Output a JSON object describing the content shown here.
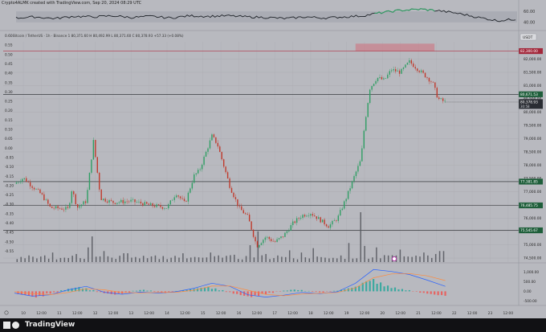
{
  "header": {
    "caption": "Crypto4ALMK created with TradingView.com, Sep 20, 2024 08:29 UTC"
  },
  "legend": {
    "symbol_line": "Bitcoin / TetherUS · 1h · Binance  1 80,371.60  H 80,492.99  L 80,371.60  C 80,378.93  +57.33 (+0.08%)"
  },
  "brand": {
    "name": "TradingView"
  },
  "colors": {
    "bg": "#b8b9bf",
    "grid": "#a9aab0",
    "up": "#2e9e63",
    "down": "#c0392b",
    "volume": "#585a61",
    "macd_line": "#2962ff",
    "signal_line": "#ff8a3c",
    "supply_zone": "#c9818c",
    "level_line": "#1e2226",
    "resistance_line": "#b03346"
  },
  "chart_data": {
    "type": "candlestick",
    "title": "",
    "instrument": "Bitcoin / TetherUS",
    "timeframe": "1h",
    "exchange": "Binance",
    "currency": "USDT",
    "ohlc": {
      "open": "80,371.60",
      "high": "80,492.99",
      "low": "80,371.60",
      "close": "80,378.93",
      "change": "+57.33 (+0.08%)"
    },
    "x_labels": [
      "10",
      "12:00",
      "11",
      "12:00",
      "12",
      "12:00",
      "13",
      "12:00",
      "14",
      "12:00",
      "15",
      "12:00",
      "16",
      "12:00",
      "17",
      "12:00",
      "18",
      "12:00",
      "19",
      "12:00",
      "20",
      "12:00",
      "21",
      "12:00",
      "22",
      "12:00",
      "23",
      "12:00"
    ],
    "x_range": [
      0,
      28
    ],
    "price_ticks": [
      "82,000.00",
      "81,500.00",
      "81,000.00",
      "80,500.00",
      "80,000.00",
      "79,500.00",
      "79,000.00",
      "78,500.00",
      "78,000.00",
      "77,500.00",
      "77,000.00",
      "76,500.00",
      "76,000.00",
      "75,500.00",
      "75,000.00",
      "74,500.00"
    ],
    "price_range": [
      74350,
      82650
    ],
    "left_ticks": [
      "0.60",
      "0.55",
      "0.50",
      "0.45",
      "0.40",
      "0.35",
      "0.30",
      "0.25",
      "0.20",
      "0.15",
      "0.10",
      "0.05",
      "0.00",
      "-0.05",
      "-0.10",
      "-0.15",
      "-0.20",
      "-0.25",
      "-0.30",
      "-0.35",
      "-0.40",
      "-0.45",
      "-0.50",
      "-0.55"
    ],
    "price_path": [
      [
        0,
        77300
      ],
      [
        0.5,
        77520
      ],
      [
        1,
        77200
      ],
      [
        1.5,
        76900
      ],
      [
        2,
        76400
      ],
      [
        3,
        76350
      ],
      [
        3.2,
        77100
      ],
      [
        3.5,
        76400
      ],
      [
        4,
        76650
      ],
      [
        4.4,
        78900
      ],
      [
        4.8,
        76750
      ],
      [
        5.5,
        76600
      ],
      [
        6.5,
        76650
      ],
      [
        7.5,
        76500
      ],
      [
        8.5,
        76400
      ],
      [
        9,
        76950
      ],
      [
        9.5,
        76550
      ],
      [
        10,
        77600
      ],
      [
        10.3,
        77800
      ],
      [
        11,
        79100
      ],
      [
        11.3,
        78800
      ],
      [
        12,
        77200
      ],
      [
        12.5,
        76400
      ],
      [
        13,
        76050
      ],
      [
        13.5,
        74950
      ],
      [
        14,
        75300
      ],
      [
        14.5,
        75100
      ],
      [
        15,
        75350
      ],
      [
        15.5,
        75800
      ],
      [
        16,
        76100
      ],
      [
        16.5,
        76200
      ],
      [
        17,
        75950
      ],
      [
        17.5,
        75700
      ],
      [
        18,
        76000
      ],
      [
        18.5,
        76800
      ],
      [
        19,
        77700
      ],
      [
        19.3,
        78200
      ],
      [
        19.5,
        79500
      ],
      [
        19.8,
        80900
      ],
      [
        20.2,
        81300
      ],
      [
        20.6,
        81200
      ],
      [
        21,
        81600
      ],
      [
        21.5,
        81500
      ],
      [
        22,
        81900
      ],
      [
        22.5,
        81600
      ],
      [
        23,
        81300
      ],
      [
        23.3,
        81100
      ],
      [
        23.6,
        80500
      ],
      [
        24,
        80380
      ]
    ],
    "volume": [
      [
        0.3,
        0.7
      ],
      [
        1.2,
        0.5
      ],
      [
        2.1,
        1.3
      ],
      [
        2.8,
        0.6
      ],
      [
        3.5,
        1.1
      ],
      [
        4.05,
        2.0
      ],
      [
        4.4,
        3.5
      ],
      [
        4.9,
        1.5
      ],
      [
        5.5,
        0.6
      ],
      [
        6.2,
        1.2
      ],
      [
        7,
        0.5
      ],
      [
        7.8,
        0.9
      ],
      [
        8.6,
        0.4
      ],
      [
        9.3,
        1.2
      ],
      [
        10.1,
        0.7
      ],
      [
        10.9,
        1.3
      ],
      [
        11.5,
        0.6
      ],
      [
        12.3,
        1.0
      ],
      [
        13.1,
        2.3
      ],
      [
        13.5,
        4.2
      ],
      [
        14.1,
        1.1
      ],
      [
        14.7,
        0.9
      ],
      [
        15.3,
        1.6
      ],
      [
        16,
        1.3
      ],
      [
        16.7,
        1.9
      ],
      [
        17.4,
        0.6
      ],
      [
        18.1,
        0.9
      ],
      [
        18.7,
        2.6
      ],
      [
        19.25,
        6.8
      ],
      [
        19.6,
        2.2
      ],
      [
        20.2,
        2.0
      ],
      [
        20.9,
        0.9
      ],
      [
        21.5,
        1.7
      ],
      [
        22.2,
        0.7
      ],
      [
        22.8,
        1.3
      ],
      [
        23.4,
        1.1
      ],
      [
        23.8,
        1.5
      ]
    ],
    "volume_range": [
      0,
      6.8
    ],
    "levels": [
      {
        "price": 82300,
        "label": "82,300.00",
        "style": "resistance"
      },
      {
        "price": 80671.53,
        "label": "80,671.53",
        "style": "support"
      },
      {
        "price": 77381.85,
        "label": "77,381.85",
        "style": "support"
      },
      {
        "price": 76485.75,
        "label": "76,485.75",
        "style": "support"
      },
      {
        "price": 75545.67,
        "label": "75,545.67",
        "style": "support"
      }
    ],
    "last_price": {
      "price": 80378.93,
      "label": "80,378.93",
      "countdown": "30:58"
    },
    "supply_zone": {
      "x_start": 19.0,
      "x_end": 23.4,
      "price_low": 82300,
      "price_high": 82580
    },
    "macd": {
      "ticks": [
        "1,000.00",
        "500.00",
        "0.00",
        "-500.00"
      ],
      "range": [
        -650,
        1350
      ],
      "histogram": [
        [
          0.2,
          -160
        ],
        [
          0.6,
          -220
        ],
        [
          1,
          -320
        ],
        [
          1.4,
          -260
        ],
        [
          1.8,
          -120
        ],
        [
          2.2,
          -60
        ],
        [
          2.6,
          60
        ],
        [
          3,
          150
        ],
        [
          3.4,
          220
        ],
        [
          3.8,
          160
        ],
        [
          4.2,
          60
        ],
        [
          4.6,
          -40
        ],
        [
          5,
          -110
        ],
        [
          5.4,
          -170
        ],
        [
          5.8,
          -120
        ],
        [
          6.2,
          -60
        ],
        [
          6.6,
          30
        ],
        [
          7,
          80
        ],
        [
          7.4,
          40
        ],
        [
          7.8,
          -30
        ],
        [
          8.2,
          -90
        ],
        [
          8.6,
          -60
        ],
        [
          9,
          20
        ],
        [
          9.4,
          70
        ],
        [
          9.8,
          120
        ],
        [
          10.2,
          180
        ],
        [
          10.6,
          240
        ],
        [
          11,
          150
        ],
        [
          11.4,
          60
        ],
        [
          11.8,
          -40
        ],
        [
          12.2,
          -140
        ],
        [
          12.6,
          -230
        ],
        [
          13,
          -300
        ],
        [
          13.4,
          -240
        ],
        [
          13.8,
          -150
        ],
        [
          14.2,
          -80
        ],
        [
          14.6,
          -20
        ],
        [
          15,
          40
        ],
        [
          15.4,
          90
        ],
        [
          15.8,
          70
        ],
        [
          16.2,
          20
        ],
        [
          16.6,
          -30
        ],
        [
          17,
          -60
        ],
        [
          17.4,
          -20
        ],
        [
          17.8,
          30
        ],
        [
          18.2,
          100
        ],
        [
          18.6,
          180
        ],
        [
          19,
          280
        ],
        [
          19.4,
          520
        ],
        [
          19.8,
          640
        ],
        [
          20.2,
          460
        ],
        [
          20.6,
          300
        ],
        [
          21,
          200
        ],
        [
          21.4,
          120
        ],
        [
          21.8,
          60
        ],
        [
          22.2,
          -20
        ],
        [
          22.6,
          -80
        ],
        [
          23,
          -140
        ],
        [
          23.4,
          -200
        ],
        [
          23.8,
          -230
        ]
      ],
      "macd_line": [
        [
          0,
          -90
        ],
        [
          1,
          -250
        ],
        [
          2,
          -180
        ],
        [
          3,
          80
        ],
        [
          4,
          260
        ],
        [
          5,
          -50
        ],
        [
          6,
          -150
        ],
        [
          7,
          -40
        ],
        [
          8,
          -90
        ],
        [
          9,
          -20
        ],
        [
          10,
          160
        ],
        [
          11,
          420
        ],
        [
          12,
          260
        ],
        [
          13,
          -180
        ],
        [
          14,
          -300
        ],
        [
          15,
          -200
        ],
        [
          16,
          -60
        ],
        [
          17,
          -120
        ],
        [
          18,
          -20
        ],
        [
          19,
          420
        ],
        [
          20,
          1130
        ],
        [
          21,
          1030
        ],
        [
          22,
          870
        ],
        [
          23,
          580
        ],
        [
          24,
          260
        ]
      ],
      "signal_line": [
        [
          0,
          -20
        ],
        [
          1,
          -120
        ],
        [
          2,
          -170
        ],
        [
          3,
          -60
        ],
        [
          4,
          130
        ],
        [
          5,
          80
        ],
        [
          6,
          -60
        ],
        [
          7,
          -80
        ],
        [
          8,
          -60
        ],
        [
          9,
          -50
        ],
        [
          10,
          60
        ],
        [
          11,
          270
        ],
        [
          12,
          280
        ],
        [
          13,
          60
        ],
        [
          14,
          -160
        ],
        [
          15,
          -230
        ],
        [
          16,
          -140
        ],
        [
          17,
          -100
        ],
        [
          18,
          -60
        ],
        [
          19,
          180
        ],
        [
          20,
          700
        ],
        [
          21,
          900
        ],
        [
          22,
          920
        ],
        [
          23,
          800
        ],
        [
          24,
          560
        ]
      ]
    },
    "rsi": {
      "ticks": [
        "60.00",
        "40.00"
      ],
      "range": [
        28,
        72
      ],
      "band": [
        40,
        60
      ],
      "path": [
        [
          0,
          48
        ],
        [
          1,
          50
        ],
        [
          2,
          47
        ],
        [
          3,
          51
        ],
        [
          4,
          50
        ],
        [
          5,
          52
        ],
        [
          6,
          49
        ],
        [
          7,
          51
        ],
        [
          8,
          48
        ],
        [
          9,
          52
        ],
        [
          10,
          51
        ],
        [
          11,
          52
        ],
        [
          12,
          50
        ],
        [
          13,
          49
        ],
        [
          14,
          47
        ],
        [
          15,
          50
        ],
        [
          16,
          48
        ],
        [
          17,
          50
        ],
        [
          18,
          52
        ],
        [
          19,
          58
        ],
        [
          20,
          62
        ],
        [
          21,
          64
        ],
        [
          22,
          61
        ],
        [
          23,
          56
        ],
        [
          24,
          49
        ],
        [
          25,
          43
        ],
        [
          26,
          46
        ]
      ],
      "overbought_start": 18.5,
      "overbought_end": 21.8
    }
  }
}
